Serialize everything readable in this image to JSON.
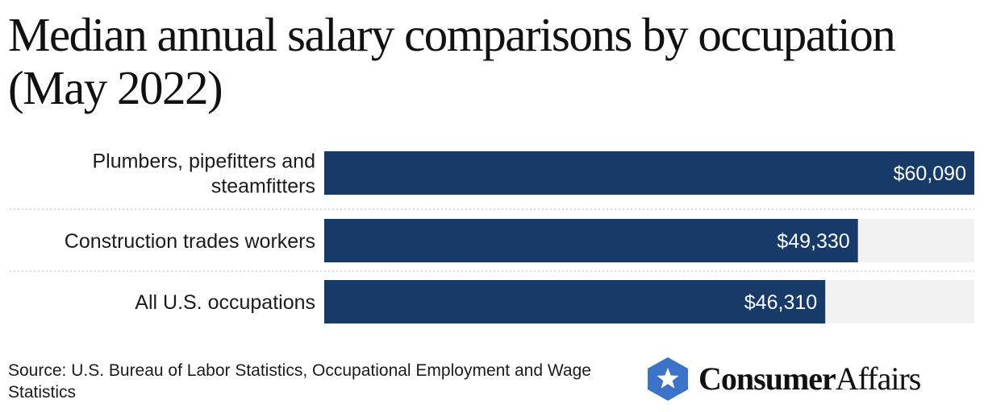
{
  "chart_data": {
    "type": "bar",
    "orientation": "horizontal",
    "title": "Median annual salary comparisons by occupation (May 2022)",
    "categories": [
      [
        "Plumbers, pipefitters and",
        "steamfitters"
      ],
      [
        "Construction trades workers"
      ],
      [
        "All U.S. occupations"
      ]
    ],
    "values": [
      60090,
      49330,
      46310
    ],
    "value_labels": [
      "$60,090",
      "$49,330",
      "$46,310"
    ],
    "xlim": [
      0,
      60090
    ],
    "xlabel": "",
    "ylabel": "",
    "grid": false,
    "colors": {
      "bar": "#173a69",
      "track": "#f2f2f2",
      "divider": "#cfcfcf"
    }
  },
  "source": "Source: U.S. Bureau of Labor Statistics, Occupational Employment and Wage Statistics",
  "logo": {
    "icon": "star-shield-icon",
    "name_strong": "Consumer",
    "name_light": "Affairs",
    "color": "#3b73c8"
  }
}
